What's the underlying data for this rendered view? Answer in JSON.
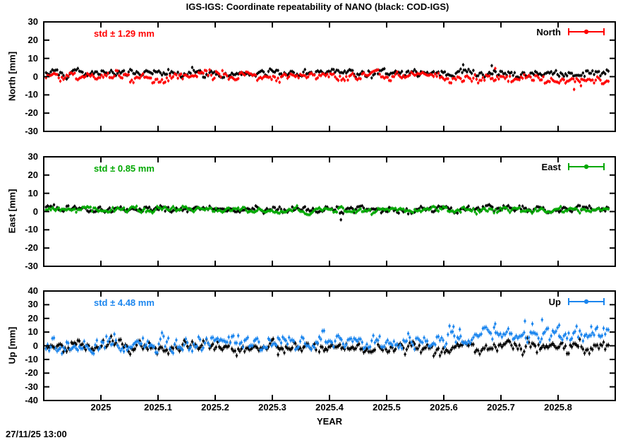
{
  "title": "IGS-IGS: Coordinate repeatability of NANO (black: COD-IGS)",
  "timestamp": "27/11/25 13:00",
  "axis": {
    "x_label": "YEAR",
    "xlim": [
      2024.9,
      2025.9
    ],
    "x_data_end": 2025.888,
    "x_tick_values": [
      2025,
      2025.1,
      2025.2,
      2025.3,
      2025.4,
      2025.5,
      2025.6,
      2025.7,
      2025.8
    ],
    "x_tick_labels": [
      "2025",
      "2025.1",
      "2025.2",
      "2025.3",
      "2025.4",
      "2025.5",
      "2025.6",
      "2025.7",
      "2025.8"
    ]
  },
  "chart_data": [
    {
      "type": "scatter",
      "component": "North",
      "ylabel": "North [mm]",
      "ylim": [
        -30,
        30
      ],
      "y_tick_labels": [
        "30",
        "20",
        "10",
        "0",
        "-10",
        "-20",
        "-30"
      ],
      "std_annotation": "std ± 1.29 mm",
      "legend_label": "North",
      "accent_color": "#ff0000",
      "series": [
        {
          "name": "COD-IGS",
          "color": "#000000",
          "n": 355,
          "seed": 101,
          "sigma": 1.1,
          "mean_segments": [
            [
              2024.9,
              2025.9,
              2.0
            ]
          ],
          "outliers": [
            [
              2025.634,
              6.5
            ],
            [
              2025.684,
              6.0
            ]
          ]
        },
        {
          "name": "IGS-IGS",
          "color": "#ff0000",
          "n": 355,
          "seed": 102,
          "sigma": 1.29,
          "mean_segments": [
            [
              2024.9,
              2025.05,
              0.3
            ],
            [
              2025.05,
              2025.12,
              -1.2
            ],
            [
              2025.12,
              2025.6,
              0.2
            ],
            [
              2025.6,
              2025.75,
              -0.6
            ],
            [
              2025.75,
              2025.9,
              -1.6
            ]
          ],
          "outliers": [
            [
              2025.69,
              4.5
            ],
            [
              2025.828,
              -7.0
            ],
            [
              2025.84,
              -5.0
            ]
          ]
        }
      ]
    },
    {
      "type": "scatter",
      "component": "East",
      "ylabel": "East [mm]",
      "ylim": [
        -30,
        30
      ],
      "y_tick_labels": [
        "30",
        "20",
        "10",
        "0",
        "-10",
        "-20",
        "-30"
      ],
      "std_annotation": "std ± 0.85 mm",
      "legend_label": "East",
      "accent_color": "#00a800",
      "series": [
        {
          "name": "COD-IGS",
          "color": "#000000",
          "n": 355,
          "seed": 103,
          "sigma": 1.0,
          "mean_segments": [
            [
              2024.9,
              2025.9,
              1.2
            ]
          ],
          "outliers": [
            [
              2025.42,
              -4.5
            ]
          ]
        },
        {
          "name": "IGS-IGS",
          "color": "#00a800",
          "n": 355,
          "seed": 104,
          "sigma": 0.85,
          "mean_segments": [
            [
              2024.9,
              2025.9,
              0.8
            ]
          ],
          "outliers": []
        }
      ]
    },
    {
      "type": "scatter",
      "component": "Up",
      "ylabel": "Up [mm]",
      "ylim": [
        -40,
        40
      ],
      "y_tick_labels": [
        "40",
        "30",
        "20",
        "10",
        "0",
        "-10",
        "-20",
        "-30",
        "-40"
      ],
      "std_annotation": "std ± 4.48 mm",
      "legend_label": "Up",
      "accent_color": "#1c86ee",
      "series": [
        {
          "name": "COD-IGS",
          "color": "#000000",
          "n": 355,
          "seed": 105,
          "sigma": 2.4,
          "mean_segments": [
            [
              2024.9,
              2025.55,
              -0.3
            ],
            [
              2025.55,
              2025.9,
              -1.0
            ]
          ],
          "outliers": [
            [
              2025.31,
              -6.5
            ]
          ]
        },
        {
          "name": "IGS-IGS",
          "color": "#1c86ee",
          "n": 355,
          "seed": 106,
          "sigma": 3.2,
          "mean_segments": [
            [
              2024.9,
              2025.05,
              0.5
            ],
            [
              2025.05,
              2025.3,
              1.5
            ],
            [
              2025.3,
              2025.55,
              2.5
            ],
            [
              2025.55,
              2025.65,
              5.0
            ],
            [
              2025.65,
              2025.9,
              8.5
            ]
          ],
          "outliers": [
            [
              2025.617,
              14
            ],
            [
              2025.628,
              12
            ],
            [
              2025.69,
              16
            ],
            [
              2025.742,
              18
            ],
            [
              2025.755,
              16
            ],
            [
              2025.772,
              19
            ],
            [
              2025.802,
              15
            ],
            [
              2025.858,
              14
            ]
          ]
        }
      ]
    }
  ]
}
